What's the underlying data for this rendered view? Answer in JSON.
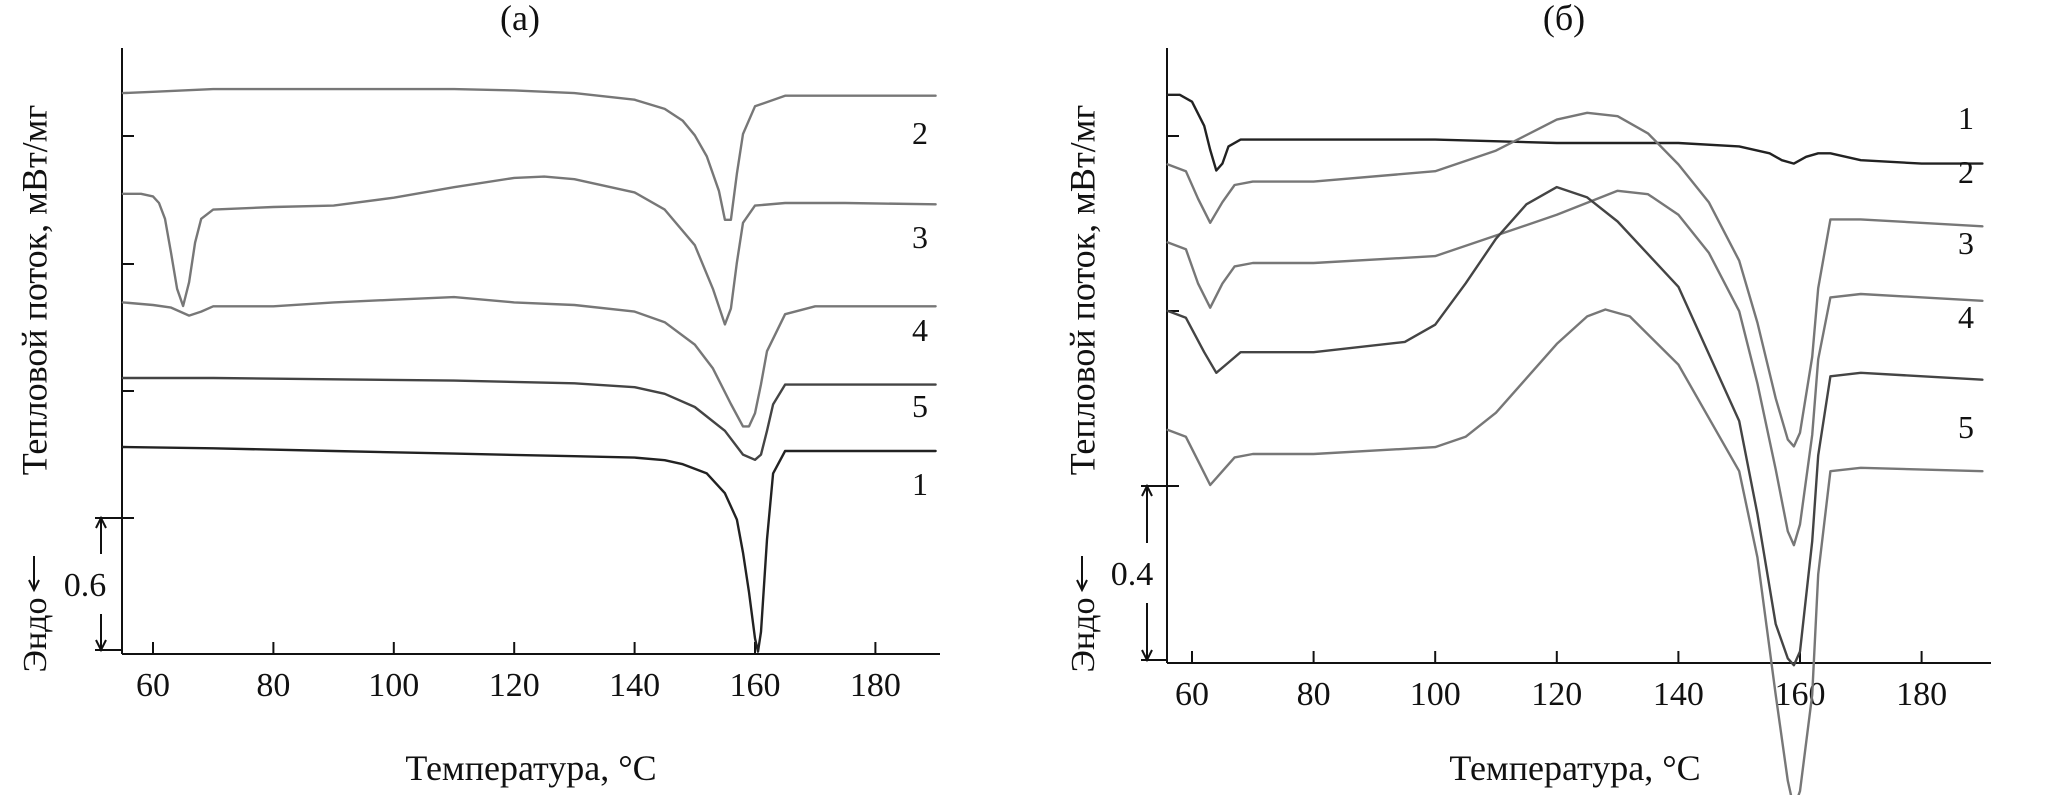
{
  "chart_data": [
    {
      "type": "line",
      "title": "(а)",
      "xlabel": "Температура, °C",
      "ylabel": "Тепловой поток, мВт/мг",
      "endo_label": "Эндо",
      "xlim": [
        55,
        190
      ],
      "xticks": [
        60,
        80,
        100,
        120,
        140,
        160,
        180
      ],
      "scale_bar_label": "0.6",
      "series": [
        {
          "name": "2",
          "color": "#777777",
          "x": [
            55,
            60,
            70,
            80,
            90,
            100,
            110,
            120,
            130,
            140,
            145,
            148,
            150,
            152,
            154,
            155,
            156,
            157,
            158,
            160,
            165,
            175,
            190
          ],
          "y": [
            0.06,
            0.07,
            0.09,
            0.09,
            0.09,
            0.09,
            0.09,
            0.08,
            0.06,
            0.01,
            -0.06,
            -0.15,
            -0.26,
            -0.42,
            -0.68,
            -0.9,
            -0.9,
            -0.55,
            -0.25,
            -0.04,
            0.04,
            0.04,
            0.04
          ]
        },
        {
          "name": "3",
          "color": "#777777",
          "x": [
            55,
            58,
            60,
            61,
            62,
            63,
            64,
            65,
            66,
            67,
            68,
            70,
            80,
            90,
            100,
            110,
            120,
            125,
            130,
            140,
            145,
            150,
            153,
            155,
            156,
            157,
            158,
            160,
            165,
            175,
            190
          ],
          "y": [
            0.07,
            0.07,
            0.05,
            0.0,
            -0.12,
            -0.38,
            -0.65,
            -0.78,
            -0.6,
            -0.3,
            -0.12,
            -0.05,
            -0.03,
            -0.02,
            0.04,
            0.12,
            0.19,
            0.2,
            0.18,
            0.08,
            -0.05,
            -0.32,
            -0.65,
            -0.92,
            -0.8,
            -0.45,
            -0.15,
            -0.02,
            0.0,
            0.0,
            -0.01
          ]
        },
        {
          "name": "4",
          "color": "#777777",
          "x": [
            55,
            60,
            63,
            66,
            68,
            70,
            80,
            90,
            100,
            110,
            120,
            130,
            140,
            145,
            150,
            153,
            156,
            158,
            159,
            160,
            161,
            162,
            165,
            170,
            190
          ],
          "y": [
            0.02,
            0.0,
            -0.02,
            -0.08,
            -0.05,
            -0.01,
            -0.01,
            0.02,
            0.04,
            0.06,
            0.02,
            0.0,
            -0.05,
            -0.13,
            -0.3,
            -0.48,
            -0.75,
            -0.92,
            -0.92,
            -0.82,
            -0.6,
            -0.35,
            -0.07,
            -0.01,
            -0.01
          ]
        },
        {
          "name": "5",
          "color": "#444444",
          "x": [
            55,
            70,
            90,
            110,
            130,
            140,
            145,
            150,
            155,
            158,
            160,
            161,
            162,
            163,
            165,
            170,
            190
          ],
          "y": [
            0.0,
            0.0,
            -0.01,
            -0.02,
            -0.04,
            -0.07,
            -0.12,
            -0.22,
            -0.4,
            -0.58,
            -0.62,
            -0.58,
            -0.4,
            -0.2,
            -0.05,
            -0.05,
            -0.05
          ]
        },
        {
          "name": "1",
          "color": "#222222",
          "x": [
            55,
            70,
            90,
            110,
            130,
            140,
            145,
            148,
            152,
            155,
            157,
            158,
            159,
            160,
            160.5,
            161,
            162,
            163,
            165,
            170,
            190
          ],
          "y": [
            0.0,
            -0.01,
            -0.03,
            -0.05,
            -0.07,
            -0.08,
            -0.1,
            -0.13,
            -0.2,
            -0.35,
            -0.55,
            -0.8,
            -1.1,
            -1.45,
            -1.55,
            -1.4,
            -0.7,
            -0.2,
            -0.03,
            -0.03,
            -0.03
          ]
        }
      ]
    },
    {
      "type": "line",
      "title": "(б)",
      "xlabel": "Температура, °C",
      "ylabel": "Тепловой поток, мВт/мг",
      "endo_label": "Эндо",
      "xlim": [
        55,
        190
      ],
      "xticks": [
        60,
        80,
        100,
        120,
        140,
        160,
        180
      ],
      "scale_bar_label": "0.4",
      "series": [
        {
          "name": "1",
          "color": "#222222",
          "x": [
            56,
            58,
            60,
            62,
            63,
            64,
            65,
            66,
            68,
            70,
            80,
            100,
            120,
            130,
            140,
            150,
            155,
            157,
            159,
            161,
            163,
            165,
            170,
            180,
            190
          ],
          "y": [
            0.14,
            0.14,
            0.12,
            0.05,
            -0.02,
            -0.08,
            -0.06,
            -0.01,
            0.01,
            0.01,
            0.01,
            0.01,
            0.0,
            0.0,
            0.0,
            -0.01,
            -0.03,
            -0.05,
            -0.06,
            -0.04,
            -0.03,
            -0.03,
            -0.05,
            -0.06,
            -0.06
          ]
        },
        {
          "name": "2",
          "color": "#777777",
          "x": [
            56,
            59,
            61,
            63,
            65,
            67,
            70,
            80,
            100,
            110,
            120,
            125,
            130,
            135,
            140,
            145,
            150,
            153,
            156,
            158,
            159,
            160,
            162,
            163,
            165,
            170,
            190
          ],
          "y": [
            0.06,
            0.04,
            -0.04,
            -0.11,
            -0.05,
            0.0,
            0.01,
            0.01,
            0.04,
            0.1,
            0.19,
            0.21,
            0.2,
            0.15,
            0.06,
            -0.05,
            -0.22,
            -0.4,
            -0.62,
            -0.74,
            -0.76,
            -0.72,
            -0.5,
            -0.3,
            -0.1,
            -0.1,
            -0.12
          ]
        },
        {
          "name": "3",
          "color": "#777777",
          "x": [
            56,
            59,
            61,
            63,
            65,
            67,
            70,
            80,
            100,
            110,
            120,
            130,
            135,
            140,
            145,
            150,
            153,
            156,
            158,
            159,
            160,
            162,
            163,
            165,
            170,
            190
          ],
          "y": [
            0.06,
            0.04,
            -0.06,
            -0.13,
            -0.06,
            -0.01,
            0.0,
            0.0,
            0.02,
            0.08,
            0.14,
            0.21,
            0.2,
            0.14,
            0.03,
            -0.14,
            -0.35,
            -0.6,
            -0.78,
            -0.82,
            -0.76,
            -0.5,
            -0.28,
            -0.1,
            -0.09,
            -0.11
          ]
        },
        {
          "name": "4",
          "color": "#444444",
          "x": [
            56,
            59,
            62,
            64,
            66,
            68,
            70,
            80,
            95,
            100,
            105,
            110,
            115,
            120,
            125,
            130,
            140,
            150,
            153,
            156,
            158,
            159,
            160,
            162,
            163,
            165,
            170,
            190
          ],
          "y": [
            0.07,
            0.05,
            -0.05,
            -0.11,
            -0.08,
            -0.05,
            -0.05,
            -0.05,
            -0.02,
            0.03,
            0.15,
            0.28,
            0.38,
            0.43,
            0.4,
            0.33,
            0.14,
            -0.25,
            -0.52,
            -0.84,
            -0.94,
            -0.96,
            -0.92,
            -0.6,
            -0.35,
            -0.12,
            -0.11,
            -0.13
          ]
        },
        {
          "name": "5",
          "color": "#777777",
          "x": [
            56,
            59,
            61,
            63,
            65,
            67,
            70,
            80,
            100,
            105,
            110,
            115,
            120,
            125,
            128,
            132,
            140,
            150,
            153,
            156,
            158,
            159,
            160,
            162,
            163,
            165,
            170,
            190
          ],
          "y": [
            0.07,
            0.05,
            -0.02,
            -0.09,
            -0.05,
            -0.01,
            0.0,
            0.0,
            0.02,
            0.05,
            0.12,
            0.22,
            0.32,
            0.4,
            0.42,
            0.4,
            0.26,
            -0.05,
            -0.3,
            -0.7,
            -0.95,
            -1.03,
            -0.98,
            -0.7,
            -0.35,
            -0.05,
            -0.04,
            -0.05
          ]
        }
      ]
    }
  ]
}
